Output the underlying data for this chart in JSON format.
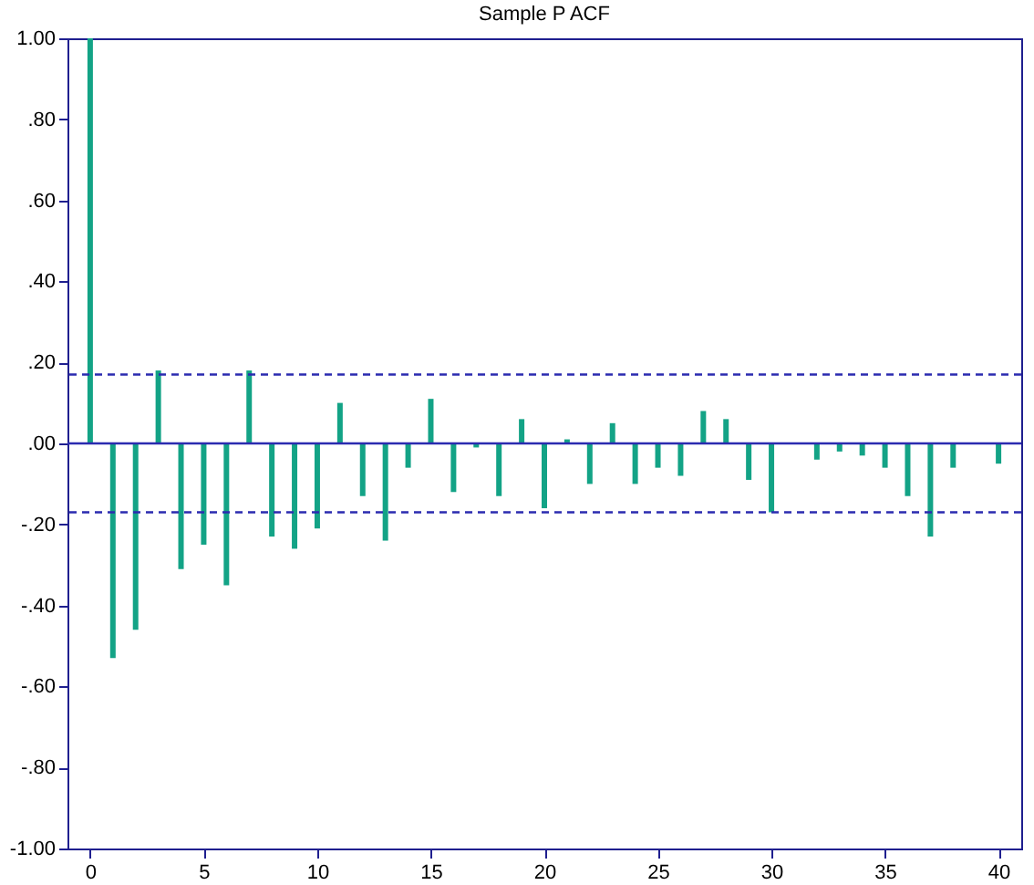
{
  "chart_data": {
    "type": "bar",
    "title": "Sample P ACF",
    "x": [
      0,
      1,
      2,
      3,
      4,
      5,
      6,
      7,
      8,
      9,
      10,
      11,
      12,
      13,
      14,
      15,
      16,
      17,
      18,
      19,
      20,
      21,
      22,
      23,
      24,
      25,
      26,
      27,
      28,
      29,
      30,
      31,
      32,
      33,
      34,
      35,
      36,
      37,
      38,
      39,
      40
    ],
    "values": [
      1.0,
      -0.53,
      -0.46,
      0.18,
      -0.31,
      -0.25,
      -0.35,
      0.18,
      -0.23,
      -0.26,
      -0.21,
      0.1,
      -0.13,
      -0.24,
      -0.06,
      0.11,
      -0.12,
      -0.01,
      -0.13,
      0.06,
      -0.16,
      0.01,
      -0.1,
      0.05,
      -0.1,
      -0.06,
      -0.08,
      0.08,
      0.06,
      -0.09,
      -0.17,
      0.0,
      -0.04,
      -0.02,
      -0.03,
      -0.06,
      -0.13,
      -0.23,
      -0.06,
      0.0,
      -0.05
    ],
    "color": "#13a386",
    "xlim": [
      -1,
      41
    ],
    "xticks": [
      0,
      5,
      10,
      15,
      20,
      25,
      30,
      35,
      40
    ],
    "ylim": [
      -1,
      1
    ],
    "yticks": [
      {
        "value": -1,
        "label": "-1.00"
      },
      {
        "value": -0.8,
        "label": "-.80"
      },
      {
        "value": -0.6,
        "label": "-.60"
      },
      {
        "value": -0.4,
        "label": "-.40"
      },
      {
        "value": -0.2,
        "label": "-.20"
      },
      {
        "value": 0,
        "label": ".00"
      },
      {
        "value": 0.2,
        "label": ".20"
      },
      {
        "value": 0.4,
        "label": ".40"
      },
      {
        "value": 0.6,
        "label": ".60"
      },
      {
        "value": 0.8,
        "label": ".80"
      },
      {
        "value": 1,
        "label": "1.00"
      }
    ],
    "ref_lines": [
      {
        "axis": "y",
        "value": 0.17,
        "color": "#2b2bb0",
        "line_style": "dashed"
      },
      {
        "axis": "y",
        "value": -0.17,
        "color": "#2b2bb0",
        "line_style": "dashed"
      },
      {
        "axis": "y",
        "value": 0,
        "color": "#2b2bb0",
        "line_style": "solid"
      }
    ],
    "grid": false
  }
}
